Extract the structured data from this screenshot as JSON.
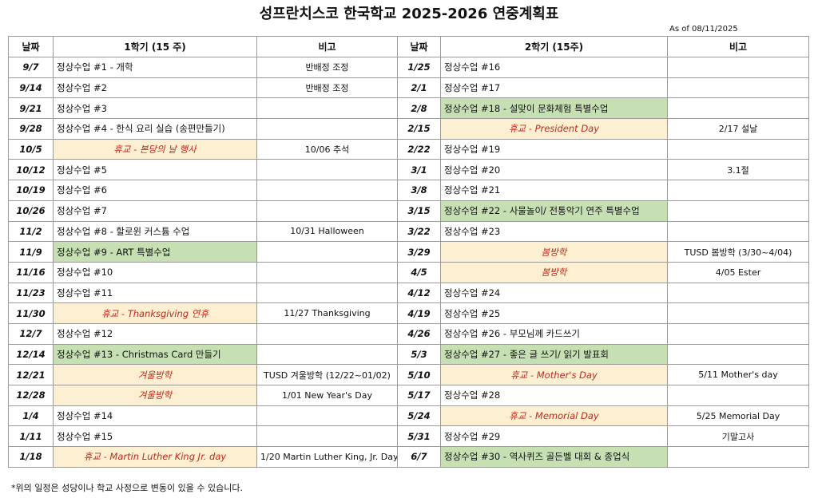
{
  "title": "성프란치스코 한국학교 2025-2026 연중계획표",
  "as_of": "As of 08/11/2025",
  "headers": [
    "날짜",
    "1학기 (15 주)",
    "비고",
    "날짜",
    "2학기 (15주)",
    "비고"
  ],
  "rows": [
    {
      "date1": "9/7",
      "class1": "정상수업 #1 - 개학",
      "note1": "반배정 조정",
      "date2": "1/25",
      "class2": "정상수업 #16"
    },
    {
      "date1": "9/14",
      "class1": "정상수업 #2",
      "note1": "반배정 조정",
      "date2": "2/1",
      "class2": "정상수업 #17"
    },
    {
      "date1": "9/21",
      "class1": "정상수업 #3",
      "date2": "2/8",
      "class2": "정상수업 #18 - 설맞이 문화체험 특별수업",
      "kind2": "special"
    },
    {
      "date1": "9/28",
      "class1": "정상수업 #4 - 한식 요리 실습  (송편만들기)",
      "date2": "2/15",
      "class2": "휴교 - President Day",
      "kind2": "holiday",
      "note2": "2/17 설날"
    },
    {
      "date1": "10/5",
      "class1": "휴교 -  본당의 날 행사",
      "kind1": "holiday",
      "note1": "10/06 추석",
      "date2": "2/22",
      "class2": "정상수업 #19"
    },
    {
      "date1": "10/12",
      "class1": "정상수업 #5",
      "date2": "3/1",
      "class2": "정상수업 #20",
      "note2": "3.1절"
    },
    {
      "date1": "10/19",
      "class1": "정상수업 #6",
      "date2": "3/8",
      "class2": "정상수업 #21"
    },
    {
      "date1": "10/26",
      "class1": "정상수업 #7",
      "date2": "3/15",
      "class2": "정상수업 #22 - 사물놀이/ 전통악기 연주 특별수업",
      "kind2": "special"
    },
    {
      "date1": "11/2",
      "class1": "정상수업 #8 - 할로윈 커스튬 수업",
      "note1": "10/31 Halloween",
      "date2": "3/22",
      "class2": "정상수업 #23"
    },
    {
      "date1": "11/9",
      "class1": "정상수업 #9 - ART 특별수업",
      "kind1": "special",
      "date2": "3/29",
      "class2": "봄방학",
      "kind2": "holiday",
      "note2": "TUSD 봄방학  (3/30~4/04)"
    },
    {
      "date1": "11/16",
      "class1": "정상수업 #10",
      "date2": "4/5",
      "class2": "봄방학",
      "kind2": "holiday",
      "note2": "4/05 Ester"
    },
    {
      "date1": "11/23",
      "class1": "정상수업 #11",
      "date2": "4/12",
      "class2": "정상수업 #24"
    },
    {
      "date1": "11/30",
      "class1": "휴교 -  Thanksgiving 연휴",
      "kind1": "holiday",
      "note1": "11/27 Thanksgiving",
      "date2": "4/19",
      "class2": "정상수업 #25"
    },
    {
      "date1": "12/7",
      "class1": "정상수업 #12",
      "date2": "4/26",
      "class2": "정상수업 #26  - 부모님께 카드쓰기"
    },
    {
      "date1": "12/14",
      "class1": "정상수업 #13 - Christmas Card 만들기",
      "kind1": "special",
      "date2": "5/3",
      "class2": "정상수업 #27 - 좋은 글 쓰기/ 읽기 발표회",
      "kind2": "special"
    },
    {
      "date1": "12/21",
      "class1": "겨울방학",
      "kind1": "holiday",
      "note1": "TUSD 겨울방학 (12/22~01/02)",
      "date2": "5/10",
      "class2": "휴교 - Mother's Day",
      "kind2": "holiday",
      "note2": "5/11 Mother's day"
    },
    {
      "date1": "12/28",
      "class1": "겨울방학",
      "kind1": "holiday",
      "note1": "1/01 New Year's Day",
      "date2": "5/17",
      "class2": "정상수업 #28"
    },
    {
      "date1": "1/4",
      "class1": "정상수업 #14",
      "date2": "5/24",
      "class2": "휴교 - Memorial Day",
      "kind2": "holiday",
      "note2": "5/25 Memorial Day"
    },
    {
      "date1": "1/11",
      "class1": "정상수업 #15",
      "date2": "5/31",
      "class2": "정상수업 #29",
      "note2": "기말고사"
    },
    {
      "date1": "1/18",
      "class1": "휴교 - Martin Luther King Jr. day",
      "kind1": "holiday",
      "note1": "1/20 Martin Luther King, Jr. Day",
      "date2": "6/7",
      "class2": "정상수업 #30 - 역사퀴즈 골든벨 대회 & 종업식",
      "kind2": "special"
    }
  ],
  "footnote": "*위의 일정은 성당이나 학교 사정으로 변동이 있을 수 있습니다."
}
